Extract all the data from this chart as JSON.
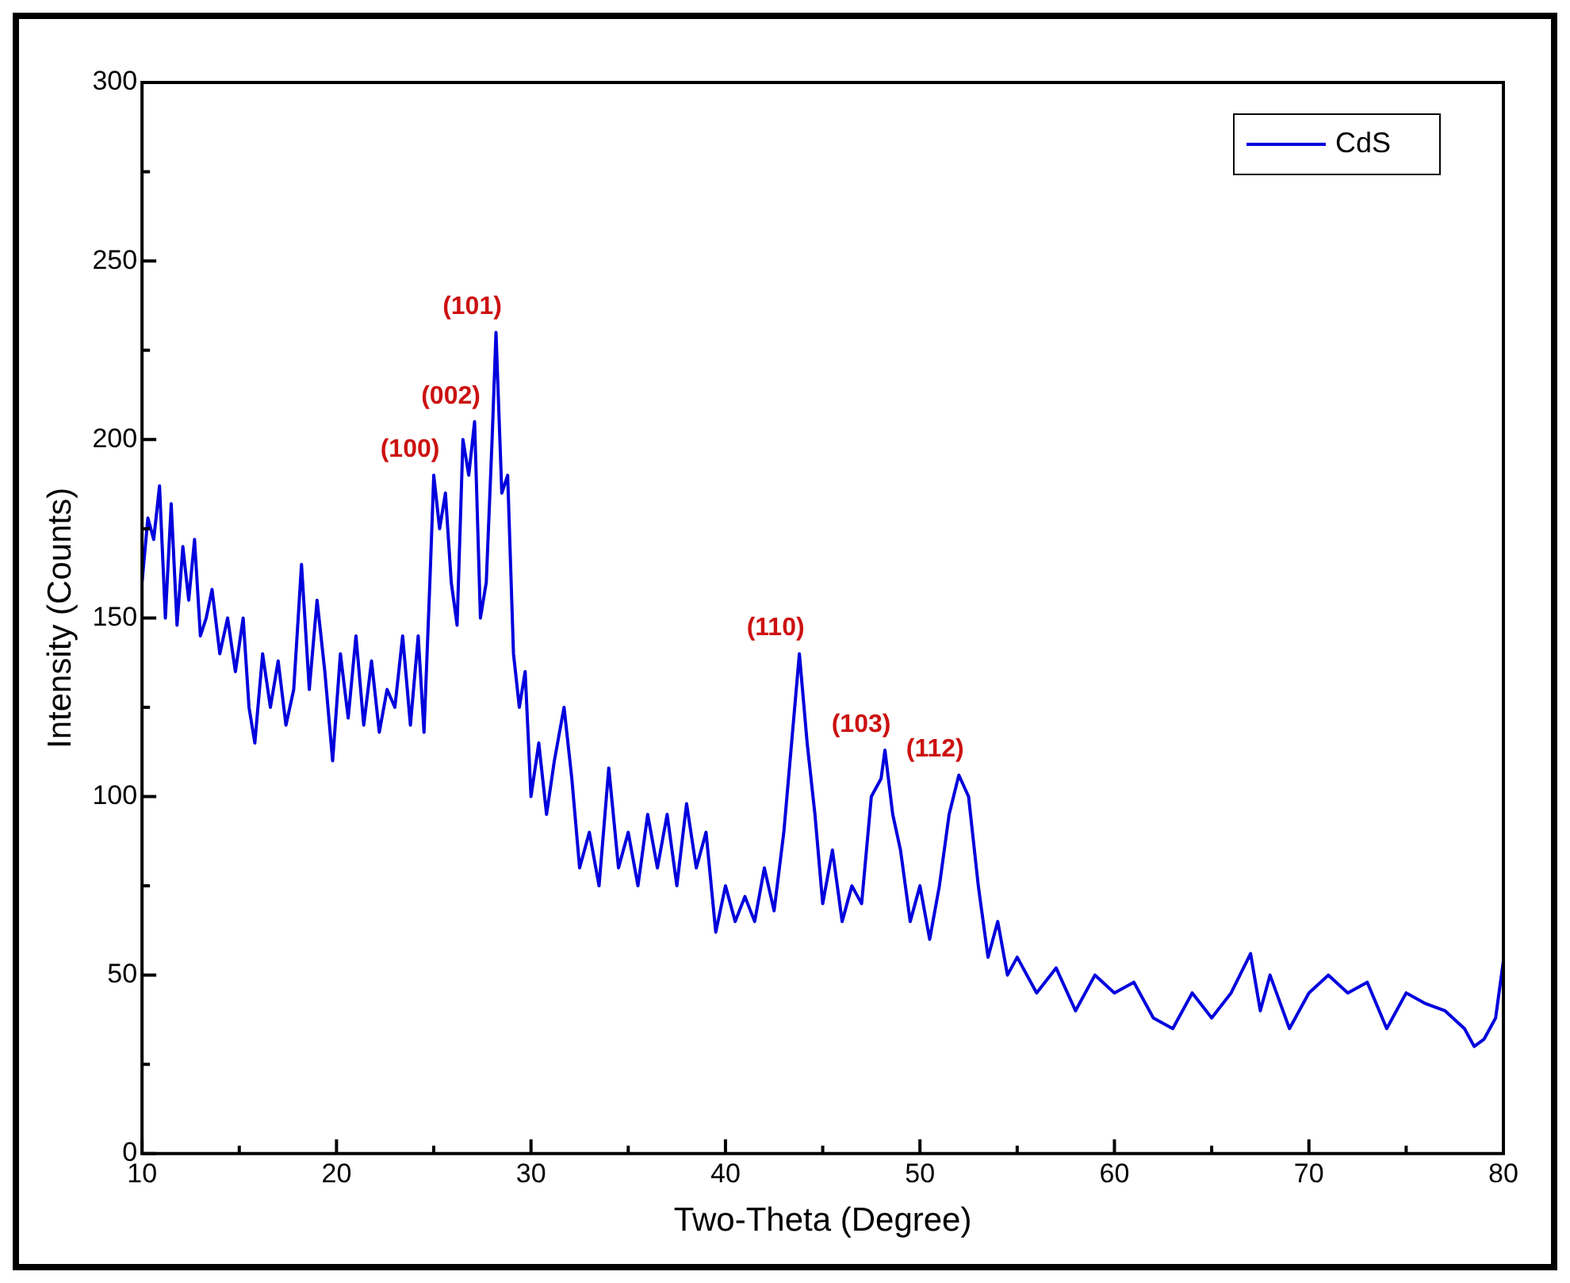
{
  "chart_data": {
    "type": "line",
    "xlabel": "Two-Theta (Degree)",
    "ylabel": "Intensity (Counts)",
    "legend": "top right",
    "grid": false,
    "marker": "none",
    "line_style": "solid",
    "xlim": [
      10,
      80
    ],
    "ylim": [
      0,
      300
    ],
    "xticks": [
      10,
      {
        "value": 15,
        "label": null
      },
      20,
      {
        "value": 25,
        "label": null
      },
      30,
      {
        "value": 35,
        "label": null
      },
      40,
      {
        "value": 45,
        "label": null
      },
      50,
      {
        "value": 55,
        "label": null
      },
      60,
      {
        "value": 65,
        "label": null
      },
      70,
      {
        "value": 75,
        "label": null
      },
      80
    ],
    "yticks": [
      0,
      {
        "value": 25,
        "label": null
      },
      50,
      {
        "value": 75,
        "label": null
      },
      100,
      {
        "value": 125,
        "label": null
      },
      150,
      {
        "value": 175,
        "label": null
      },
      200,
      {
        "value": 225,
        "label": null
      },
      250,
      {
        "value": 275,
        "label": null
      },
      300
    ],
    "annotations": [
      {
        "text": "(100)",
        "x": 25,
        "y": 190
      },
      {
        "text": "(002)",
        "x": 27.1,
        "y": 205
      },
      {
        "text": "(101)",
        "x": 28.2,
        "y": 230
      },
      {
        "text": "(110)",
        "x": 43.8,
        "y": 140
      },
      {
        "text": "(103)",
        "x": 48.2,
        "y": 113
      },
      {
        "text": "(112)",
        "x": 52,
        "y": 106
      }
    ],
    "series": [
      {
        "name": "CdS",
        "color": "#0000dd",
        "x": [
          10,
          10.3,
          10.6,
          10.9,
          11.2,
          11.5,
          11.8,
          12.1,
          12.4,
          12.7,
          13,
          13.3,
          13.6,
          14,
          14.4,
          14.8,
          15.2,
          15.5,
          15.8,
          16.2,
          16.6,
          17,
          17.4,
          17.8,
          18.2,
          18.6,
          19,
          19.4,
          19.8,
          20.2,
          20.6,
          21,
          21.4,
          21.8,
          22.2,
          22.6,
          23,
          23.4,
          23.8,
          24.2,
          24.5,
          24.8,
          25,
          25.3,
          25.6,
          25.9,
          26.2,
          26.5,
          26.8,
          27.1,
          27.4,
          27.7,
          28,
          28.2,
          28.5,
          28.8,
          29.1,
          29.4,
          29.7,
          30,
          30.4,
          30.8,
          31.2,
          31.7,
          32.1,
          32.5,
          33,
          33.5,
          34,
          34.5,
          35,
          35.5,
          36,
          36.5,
          37,
          37.5,
          38,
          38.5,
          39,
          39.5,
          40,
          40.5,
          41,
          41.5,
          42,
          42.5,
          43,
          43.4,
          43.8,
          44.2,
          44.6,
          45,
          45.5,
          46,
          46.5,
          47,
          47.5,
          48,
          48.2,
          48.6,
          49,
          49.5,
          50,
          50.5,
          51,
          51.5,
          52,
          52.5,
          53,
          53.5,
          54,
          54.5,
          55,
          56,
          57,
          58,
          59,
          60,
          61,
          62,
          63,
          64,
          65,
          66,
          67,
          67.5,
          68,
          69,
          70,
          71,
          72,
          73,
          74,
          75,
          76,
          77,
          78,
          78.5,
          79,
          79.6,
          80
        ],
        "values": [
          160,
          178,
          172,
          187,
          150,
          182,
          148,
          170,
          155,
          172,
          145,
          150,
          158,
          140,
          150,
          135,
          150,
          125,
          115,
          140,
          125,
          138,
          120,
          130,
          165,
          130,
          155,
          135,
          110,
          140,
          122,
          145,
          120,
          138,
          118,
          130,
          125,
          145,
          120,
          145,
          118,
          160,
          190,
          175,
          185,
          160,
          148,
          200,
          190,
          205,
          150,
          160,
          200,
          230,
          185,
          190,
          140,
          125,
          135,
          100,
          115,
          95,
          110,
          125,
          105,
          80,
          90,
          75,
          108,
          80,
          90,
          75,
          95,
          80,
          95,
          75,
          98,
          80,
          90,
          62,
          75,
          65,
          72,
          65,
          80,
          68,
          90,
          115,
          140,
          115,
          95,
          70,
          85,
          65,
          75,
          70,
          100,
          105,
          113,
          95,
          85,
          65,
          75,
          60,
          75,
          95,
          106,
          100,
          75,
          55,
          65,
          50,
          55,
          45,
          52,
          40,
          50,
          45,
          48,
          38,
          35,
          45,
          38,
          45,
          56,
          40,
          50,
          35,
          45,
          50,
          45,
          48,
          35,
          45,
          42,
          40,
          35,
          30,
          32,
          38,
          54
        ]
      }
    ]
  }
}
